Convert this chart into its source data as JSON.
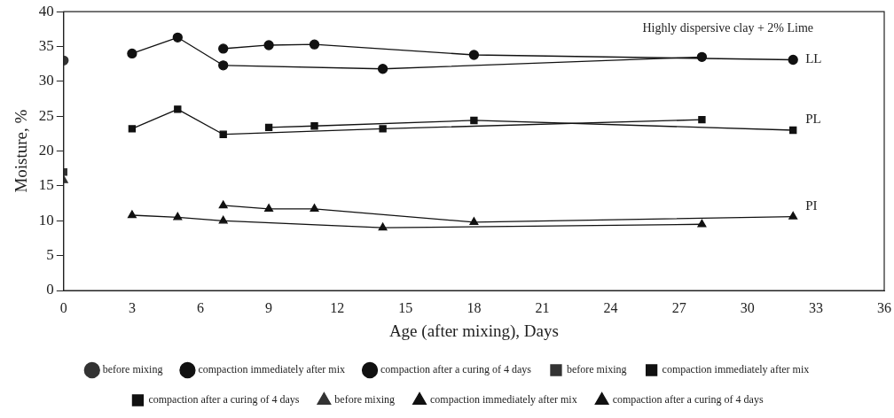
{
  "chart_data": {
    "type": "line",
    "xlabel": "Age (after mixing), Days",
    "ylabel": "Moisture, %",
    "xlim": [
      0,
      36
    ],
    "xticks": [
      0,
      3,
      6,
      9,
      12,
      15,
      18,
      21,
      24,
      27,
      30,
      33,
      36
    ],
    "ylim": [
      0,
      40
    ],
    "yticks": [
      0,
      5,
      10,
      15,
      20,
      25,
      30,
      35,
      40
    ],
    "grid": false,
    "legend": "bottom",
    "line_style": "solid",
    "annotations": [
      "Highly dispersive clay + 2% Lime",
      "LL",
      "PL",
      "PI"
    ],
    "series": [
      {
        "name": "before mixing",
        "type": "scatter",
        "marker": "circle",
        "color": "#333333",
        "x": [
          0
        ],
        "values": [
          33
        ]
      },
      {
        "name": "compaction immediately after mix",
        "marker": "circle",
        "color": "#111111",
        "x": [
          3,
          5,
          7,
          14,
          28
        ],
        "values": [
          34,
          36.3,
          32.3,
          31.8,
          33.5
        ]
      },
      {
        "name": "compaction after a curing of 4 days",
        "marker": "circle",
        "color": "#111111",
        "x": [
          7,
          9,
          11,
          18,
          32
        ],
        "values": [
          34.7,
          35.2,
          35.3,
          33.8,
          33.1
        ]
      },
      {
        "name": "before mixing",
        "type": "scatter",
        "marker": "square",
        "color": "#333333",
        "x": [
          0
        ],
        "values": [
          17
        ]
      },
      {
        "name": "compaction immediately after mix",
        "marker": "square",
        "color": "#111111",
        "x": [
          3,
          5,
          7,
          14,
          28
        ],
        "values": [
          23.2,
          26,
          22.4,
          23.2,
          24.5
        ]
      },
      {
        "name": "compaction after a curing of 4 days",
        "marker": "square",
        "color": "#111111",
        "x": [
          9,
          11,
          18,
          32
        ],
        "values": [
          23.4,
          23.6,
          24.4,
          23
        ]
      },
      {
        "name": "before mixing",
        "type": "scatter",
        "marker": "triangle",
        "color": "#333333",
        "x": [
          0
        ],
        "values": [
          15.8
        ]
      },
      {
        "name": "compaction immediately after mix",
        "marker": "triangle",
        "color": "#111111",
        "x": [
          3,
          5,
          7,
          14,
          28
        ],
        "values": [
          10.8,
          10.5,
          10,
          9,
          9.5
        ]
      },
      {
        "name": "compaction after a curing of 4 days",
        "marker": "triangle",
        "color": "#111111",
        "x": [
          7,
          9,
          11,
          18,
          32
        ],
        "values": [
          12.2,
          11.7,
          11.7,
          9.8,
          10.6
        ]
      }
    ]
  }
}
